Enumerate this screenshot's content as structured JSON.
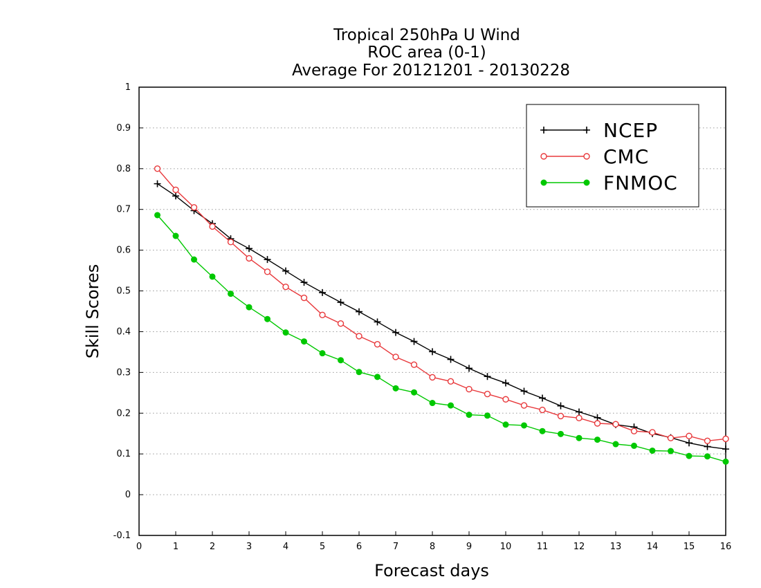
{
  "chart_data": {
    "type": "line",
    "title": [
      "Tropical 250hPa U Wind",
      "ROC area (0-1)",
      "Average For 20121201 - 20130228"
    ],
    "xlabel": "Forecast days",
    "ylabel": "Skill Scores",
    "xlim": [
      0,
      16
    ],
    "ylim": [
      -0.1,
      1
    ],
    "xticks": [
      "0",
      "1",
      "2",
      "3",
      "4",
      "5",
      "6",
      "7",
      "8",
      "9",
      "10",
      "11",
      "12",
      "13",
      "14",
      "15",
      "16"
    ],
    "yticks": [
      "-0.1",
      "0",
      "0.1",
      "0.2",
      "0.3",
      "0.4",
      "0.5",
      "0.6",
      "0.7",
      "0.8",
      "0.9",
      "1"
    ],
    "grid": "horizontal dotted",
    "legend_position": "top-right",
    "x": [
      0.5,
      1,
      1.5,
      2,
      2.5,
      3,
      3.5,
      4,
      4.5,
      5,
      5.5,
      6,
      6.5,
      7,
      7.5,
      8,
      8.5,
      9,
      9.5,
      10,
      10.5,
      11,
      11.5,
      12,
      12.5,
      13,
      13.5,
      14,
      14.5,
      15,
      15.5,
      16
    ],
    "series": [
      {
        "name": "NCEP",
        "color": "#000000",
        "marker": "plus",
        "values": [
          0.763,
          0.733,
          0.697,
          0.665,
          0.628,
          0.604,
          0.577,
          0.549,
          0.521,
          0.496,
          0.472,
          0.449,
          0.424,
          0.398,
          0.376,
          0.351,
          0.332,
          0.31,
          0.29,
          0.274,
          0.254,
          0.237,
          0.218,
          0.203,
          0.189,
          0.172,
          0.166,
          0.15,
          0.14,
          0.127,
          0.118,
          0.112
        ]
      },
      {
        "name": "CMC",
        "color": "#e8383b",
        "marker": "open-circle",
        "values": [
          0.8,
          0.748,
          0.705,
          0.658,
          0.62,
          0.58,
          0.547,
          0.51,
          0.483,
          0.441,
          0.42,
          0.389,
          0.369,
          0.338,
          0.319,
          0.288,
          0.278,
          0.259,
          0.247,
          0.234,
          0.219,
          0.208,
          0.193,
          0.188,
          0.175,
          0.173,
          0.156,
          0.153,
          0.139,
          0.144,
          0.132,
          0.137
        ]
      },
      {
        "name": "FNMOC",
        "color": "#00c800",
        "marker": "filled-circle",
        "values": [
          0.686,
          0.635,
          0.577,
          0.535,
          0.493,
          0.46,
          0.431,
          0.398,
          0.376,
          0.347,
          0.33,
          0.301,
          0.289,
          0.261,
          0.251,
          0.225,
          0.219,
          0.196,
          0.194,
          0.172,
          0.17,
          0.156,
          0.149,
          0.139,
          0.135,
          0.124,
          0.12,
          0.108,
          0.107,
          0.095,
          0.094,
          0.081
        ]
      }
    ]
  }
}
